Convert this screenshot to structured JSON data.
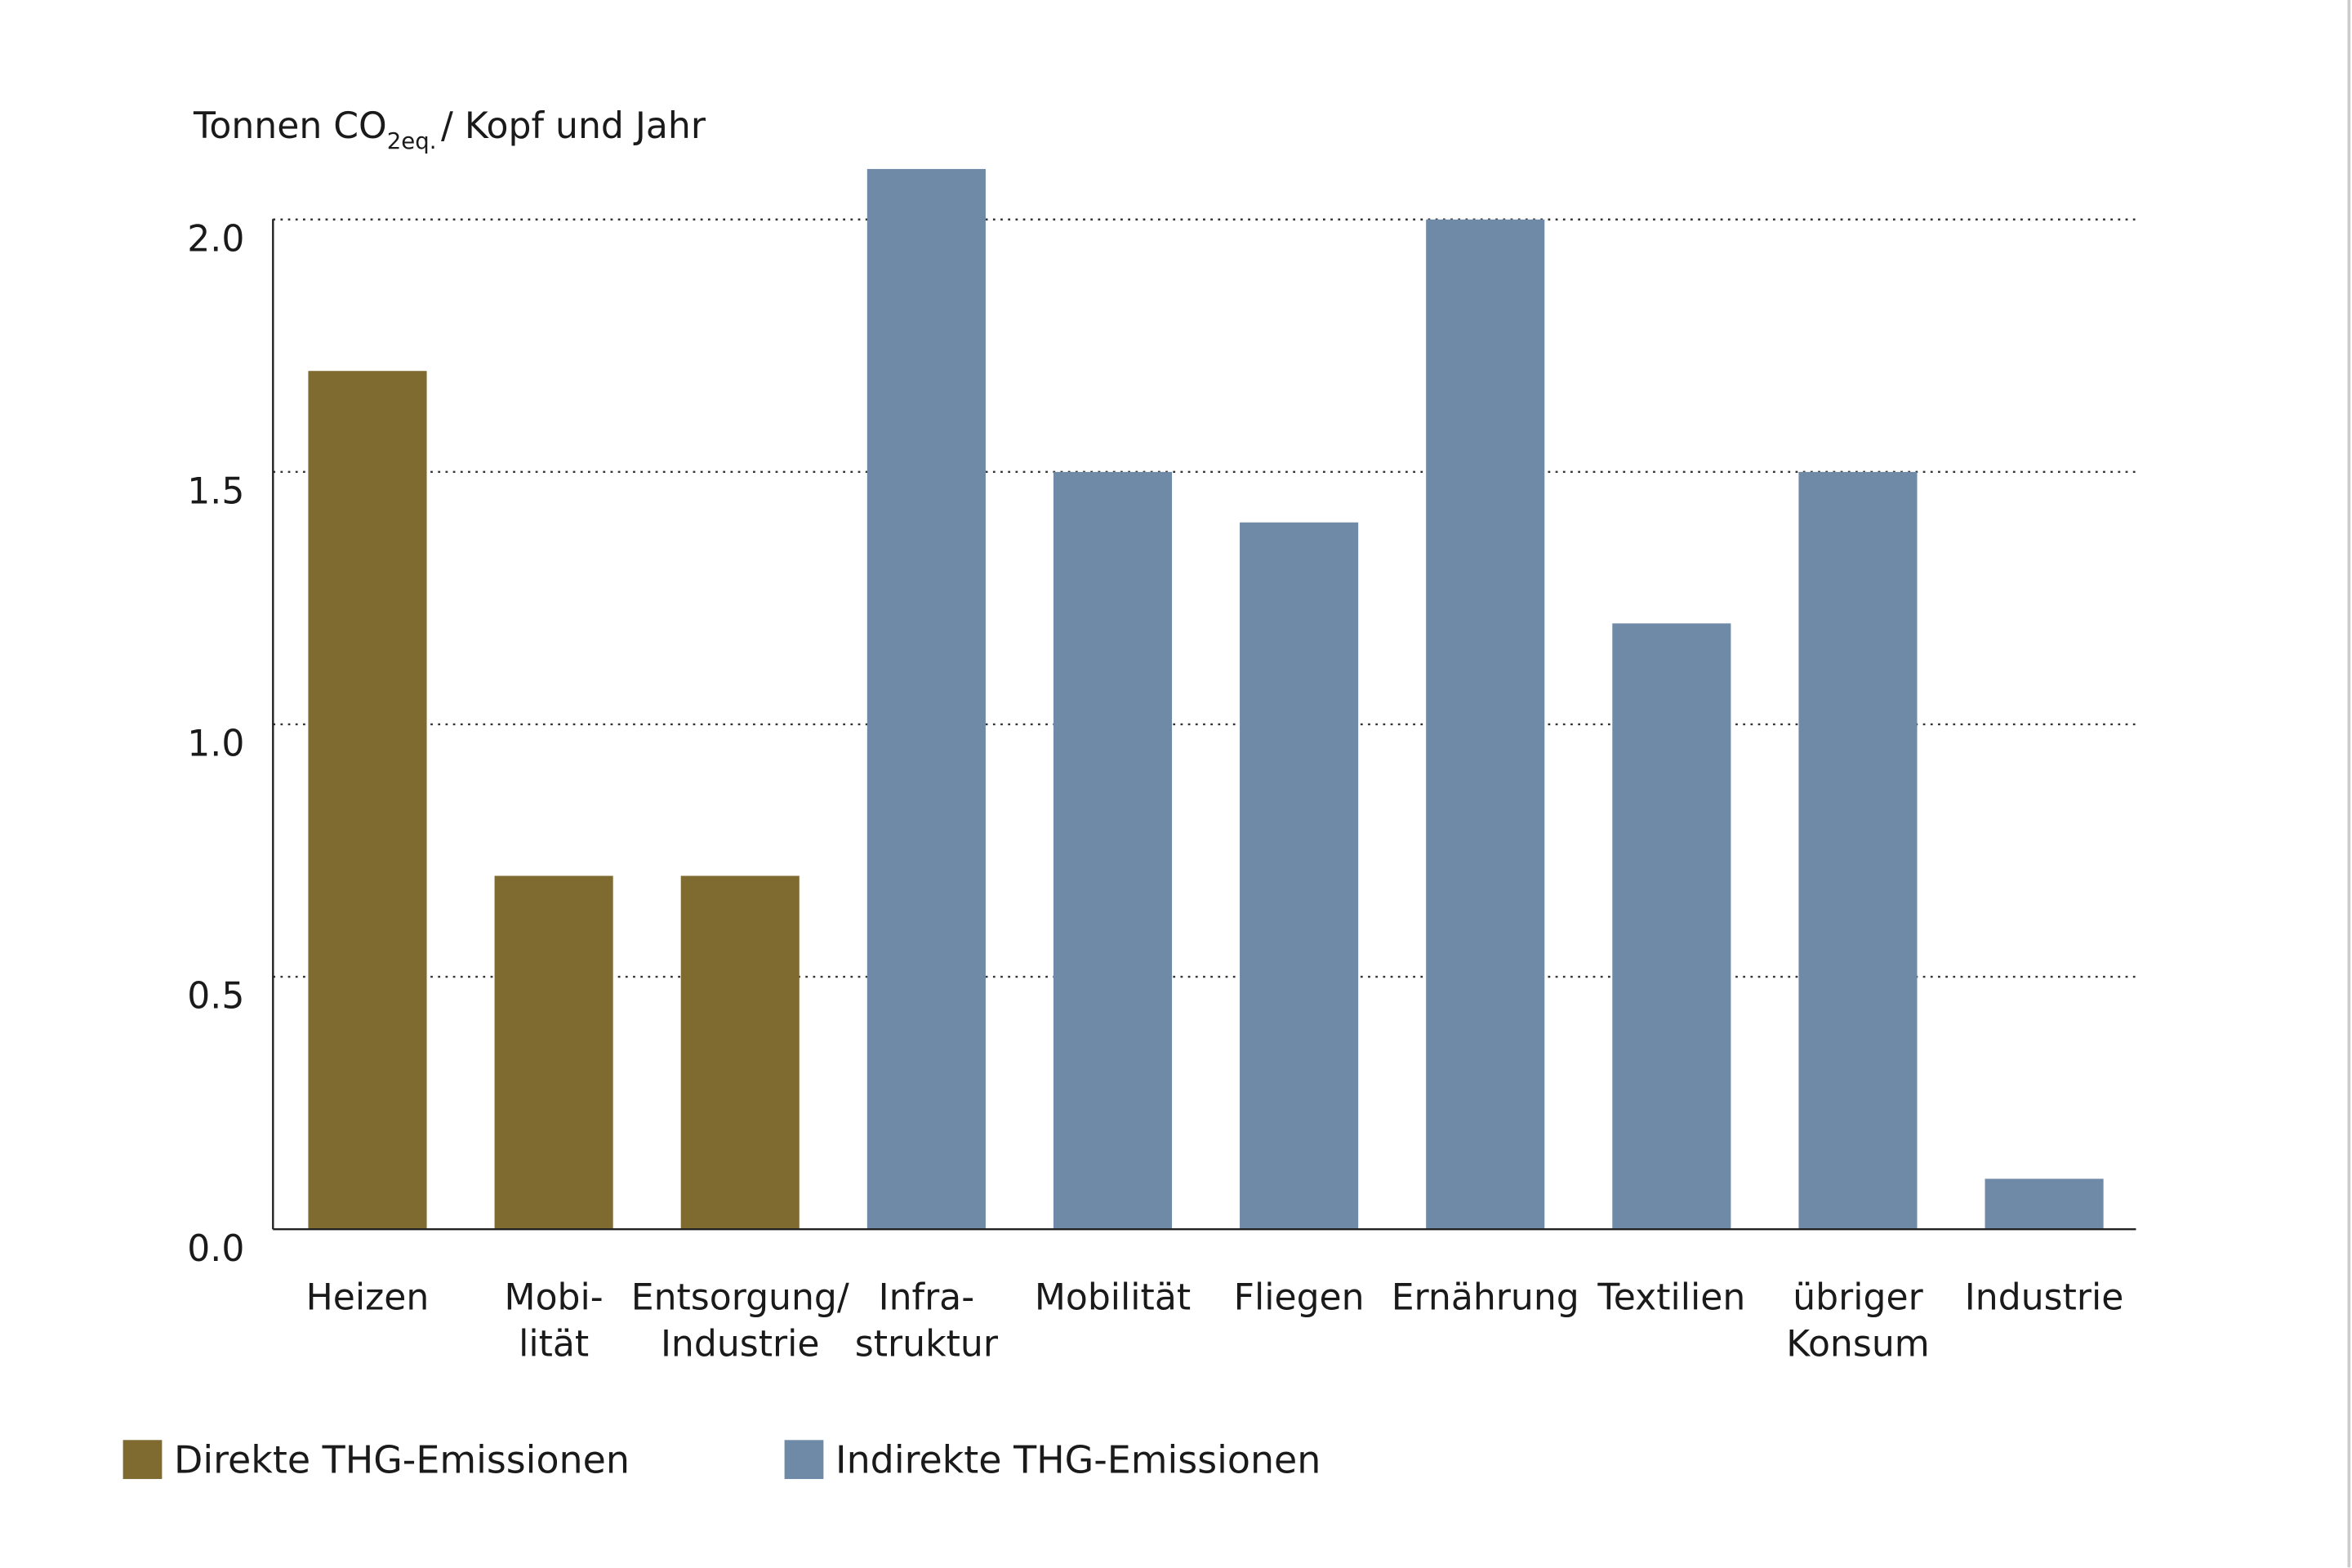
{
  "chart_data": {
    "type": "bar",
    "title": "",
    "ylabel": {
      "main": "Tonnen CO",
      "sub": "2eq.",
      "rest": "/ Kopf und Jahr"
    },
    "xlabel": "",
    "ylim": [
      0,
      2.0
    ],
    "yticks": [
      "0.0",
      "0.5",
      "1.0",
      "1.5",
      "2.0"
    ],
    "ytick_values": [
      0,
      0.5,
      1.0,
      1.5,
      2.0
    ],
    "grid": "horizontal dotted",
    "categories": [
      [
        "Heizen"
      ],
      [
        "Mobi-",
        "lität"
      ],
      [
        "Entsorgung/",
        "Industrie"
      ],
      [
        "Infra-",
        "struktur"
      ],
      [
        "Mobilität"
      ],
      [
        "Fliegen"
      ],
      [
        "Ernährung"
      ],
      [
        "Textilien"
      ],
      [
        "übriger",
        "Konsum"
      ],
      [
        "Industrie"
      ]
    ],
    "values": [
      1.7,
      0.7,
      0.7,
      2.1,
      1.5,
      1.4,
      2.0,
      1.2,
      1.5,
      0.1
    ],
    "series_index": [
      0,
      0,
      0,
      1,
      1,
      1,
      1,
      1,
      1,
      1
    ],
    "series": [
      {
        "name": "Direkte THG-Emissionen",
        "color": "#7f6a30"
      },
      {
        "name": "Indirekte THG-Emissionen",
        "color": "#6f8aa6"
      }
    ],
    "legend_placement": "bottom-left"
  }
}
